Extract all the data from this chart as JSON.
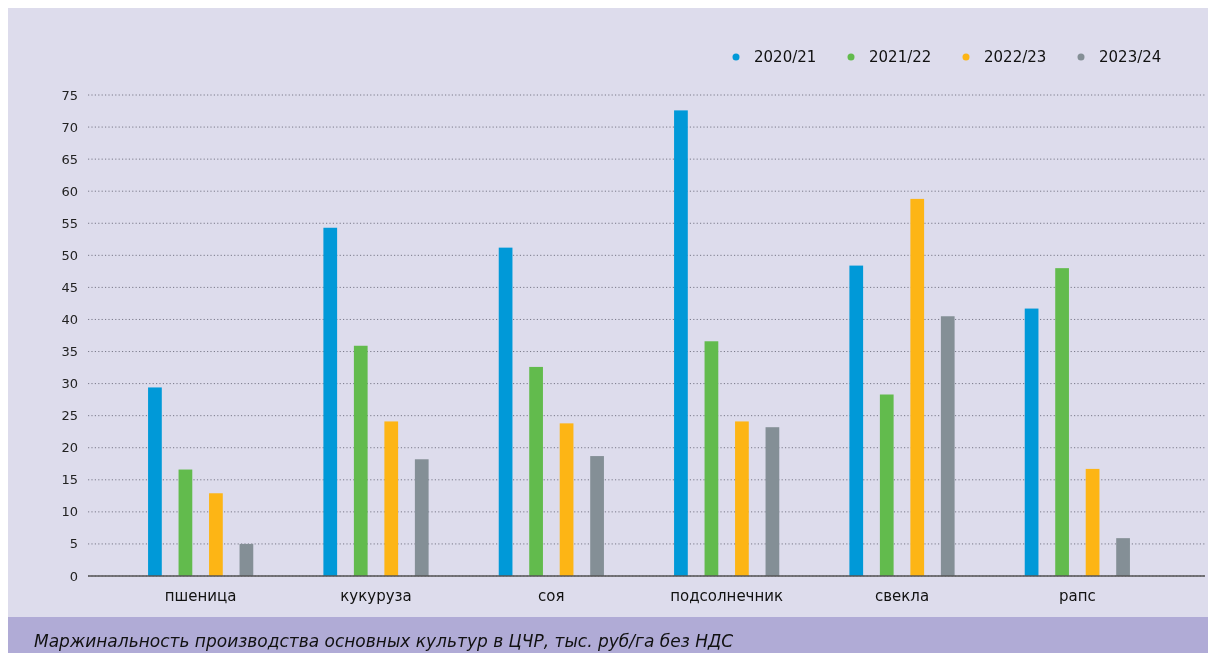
{
  "chart_data": {
    "type": "bar",
    "title": "Маржинальность производства основных культур в ЦЧР, тыс. руб/га без НДС",
    "categories": [
      "пшеница",
      "кукуруза",
      "соя",
      "подсолнечник",
      "свекла",
      "рапс"
    ],
    "series": [
      {
        "name": "2020/21",
        "color": "#0099d8",
        "values": [
          29.4,
          54.3,
          51.2,
          72.6,
          48.4,
          41.7
        ]
      },
      {
        "name": "2021/22",
        "color": "#62bb4d",
        "values": [
          16.6,
          35.9,
          32.6,
          36.6,
          28.3,
          48.0
        ]
      },
      {
        "name": "2022/23",
        "color": "#fdb515",
        "values": [
          12.9,
          24.1,
          23.8,
          24.1,
          58.8,
          16.7
        ]
      },
      {
        "name": "2023/24",
        "color": "#848f96",
        "values": [
          5.0,
          18.2,
          18.7,
          23.2,
          40.5,
          5.9
        ]
      }
    ],
    "ylim": [
      0,
      75
    ],
    "yticks": [
      0,
      5,
      10,
      15,
      20,
      25,
      30,
      35,
      40,
      45,
      50,
      55,
      60,
      65,
      70,
      75
    ],
    "grid": "y",
    "legend": "top right"
  }
}
